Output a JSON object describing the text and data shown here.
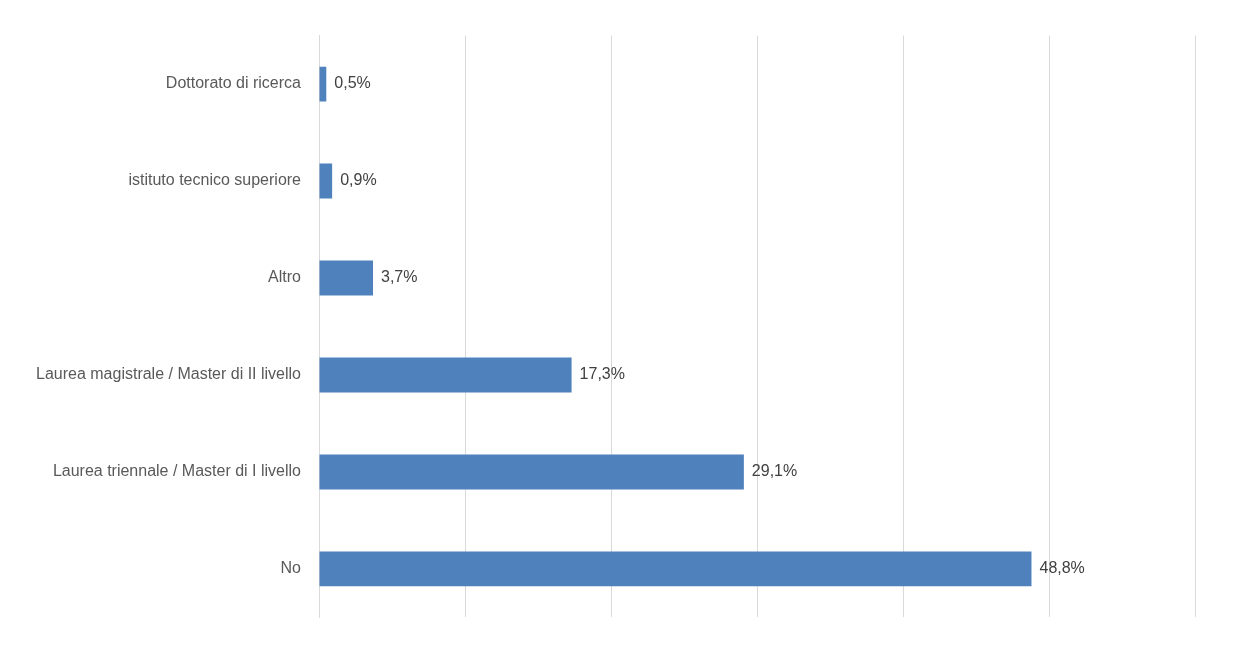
{
  "chart_data": {
    "type": "bar",
    "orientation": "horizontal",
    "categories": [
      "Dottorato di ricerca",
      "istituto tecnico superiore",
      "Altro",
      "Laurea magistrale / Master di II livello",
      "Laurea triennale / Master di I livello",
      "No"
    ],
    "values": [
      0.5,
      0.9,
      3.7,
      17.3,
      29.1,
      48.8
    ],
    "color": "#4f81bd",
    "value_labels": [
      "0,5%",
      "0,9%",
      "3,7%",
      "17,3%",
      "29,1%",
      "48,8%"
    ],
    "xlim": [
      0,
      60
    ],
    "xticks": [
      {
        "value": 0,
        "label": null
      },
      {
        "value": 10,
        "label": null
      },
      {
        "value": 20,
        "label": null
      },
      {
        "value": 30,
        "label": null
      },
      {
        "value": 40,
        "label": null
      },
      {
        "value": 50,
        "label": null
      },
      {
        "value": 60,
        "label": null
      }
    ],
    "tick_labels": "y",
    "grid": "x",
    "legend": false
  }
}
